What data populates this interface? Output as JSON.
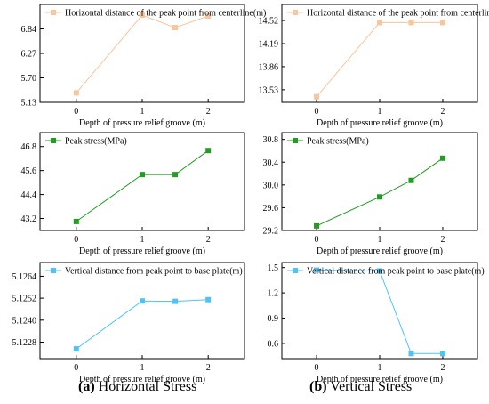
{
  "captions": [
    {
      "letter": "(a)",
      "text": "Horizontal Stress"
    },
    {
      "letter": "(b)",
      "text": "Vertical Stress"
    }
  ],
  "chart_data": [
    {
      "type": "line",
      "panel": "a-top",
      "x": [
        0,
        1,
        1.5,
        2
      ],
      "series": [
        {
          "name": "Horizontal distance of the peak point from centerline(m)",
          "values": [
            5.35,
            7.16,
            6.87,
            7.14
          ],
          "color": "#f9c59a",
          "marker": "square"
        }
      ],
      "xlabel": "Depth of pressure relief groove (m)",
      "ylabel": "",
      "xticks": [
        "0",
        "1",
        "2"
      ],
      "yticks": [
        "5.13",
        "5.70",
        "6.27",
        "6.84"
      ],
      "xlim": [
        -0.55,
        2.55
      ],
      "ylim": [
        5.13,
        7.41
      ],
      "legend": "top-left",
      "grid": false
    },
    {
      "type": "line",
      "panel": "b-top",
      "x": [
        0,
        1,
        1.5,
        2
      ],
      "series": [
        {
          "name": "Horizontal distance of the peak point from centerline(m)",
          "values": [
            13.43,
            14.49,
            14.49,
            14.49
          ],
          "color": "#f9c59a",
          "marker": "square"
        }
      ],
      "xlabel": "Depth of pressure relief groove (m)",
      "ylabel": "",
      "xticks": [
        "0",
        "1",
        "2"
      ],
      "yticks": [
        "13.53",
        "13.86",
        "14.19",
        "14.52"
      ],
      "xlim": [
        -0.55,
        2.55
      ],
      "ylim": [
        13.35,
        14.75
      ],
      "legend": "top-left",
      "grid": false
    },
    {
      "type": "line",
      "panel": "a-middle",
      "x": [
        0,
        1,
        1.5,
        2
      ],
      "series": [
        {
          "name": "Peak stress(MPa)",
          "values": [
            43.05,
            45.4,
            45.4,
            46.6
          ],
          "color": "#1f9e1f",
          "marker": "square"
        }
      ],
      "xlabel": "Depth of pressure relief groove (m)",
      "ylabel": "",
      "xticks": [
        "0",
        "1",
        "2"
      ],
      "yticks": [
        "43.2",
        "44.4",
        "45.6",
        "46.8"
      ],
      "xlim": [
        -0.55,
        2.55
      ],
      "ylim": [
        42.6,
        47.5
      ],
      "legend": "top-left",
      "grid": false
    },
    {
      "type": "line",
      "panel": "b-middle",
      "x": [
        0,
        1,
        1.5,
        2
      ],
      "series": [
        {
          "name": "Peak stress(MPa)",
          "values": [
            29.28,
            29.79,
            30.08,
            30.47
          ],
          "color": "#1f9e1f",
          "marker": "square"
        }
      ],
      "xlabel": "Depth of pressure relief groove (m)",
      "ylabel": "",
      "xticks": [
        "0",
        "1",
        "2"
      ],
      "yticks": [
        "29.2",
        "29.6",
        "30.0",
        "30.4",
        "30.8"
      ],
      "xlim": [
        -0.55,
        2.55
      ],
      "ylim": [
        29.2,
        30.92
      ],
      "legend": "top-left",
      "grid": false
    },
    {
      "type": "line",
      "panel": "a-bottom",
      "x": [
        0,
        1,
        1.5,
        2
      ],
      "series": [
        {
          "name": "Vertical distance from peak point to base plate(m)",
          "values": [
            5.12243,
            5.12505,
            5.12503,
            5.12512
          ],
          "color": "#4fc3f7",
          "marker": "square"
        }
      ],
      "xlabel": "Depth of pressure relief groove (m)",
      "ylabel": "",
      "xticks": [
        "0",
        "1",
        "2"
      ],
      "yticks": [
        "5.1228",
        "5.1240",
        "5.1252",
        "5.1264"
      ],
      "xlim": [
        -0.55,
        2.55
      ],
      "ylim": [
        5.1219,
        5.12715
      ],
      "legend": "top-left",
      "grid": false
    },
    {
      "type": "line",
      "panel": "b-bottom",
      "x": [
        0,
        1,
        1.5,
        2
      ],
      "series": [
        {
          "name": "Vertical distance from peak point to base plate(m)",
          "values": [
            1.47,
            1.46,
            0.48,
            0.48
          ],
          "color": "#4fc3f7",
          "marker": "square"
        }
      ],
      "xlabel": "Depth of pressure relief groove (m)",
      "ylabel": "",
      "xticks": [
        "0",
        "1",
        "2"
      ],
      "yticks": [
        "0.6",
        "0.9",
        "1.2",
        "1.5"
      ],
      "xlim": [
        -0.55,
        2.55
      ],
      "ylim": [
        0.42,
        1.56
      ],
      "legend": "top-left",
      "grid": false
    }
  ]
}
